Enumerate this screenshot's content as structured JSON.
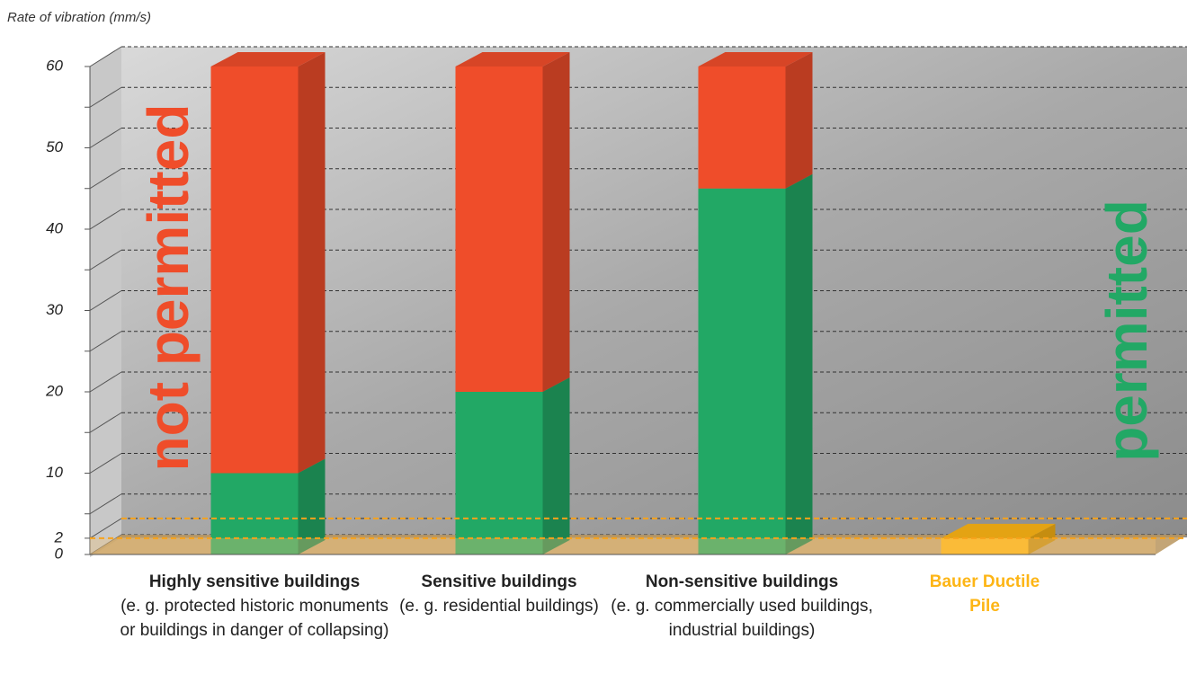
{
  "chart_data": {
    "type": "bar3d_stacked",
    "y_label": "Rate of vibration (mm/s)",
    "categories": [
      "Highly sensitive buildings",
      "Sensitive buildings",
      "Non-sensitive buildings",
      "Bauer Ductile Pile"
    ],
    "category_notes": [
      "(e. g. protected historic monuments or buildings in danger of collapsing)",
      "(e. g. residential buildings)",
      "(e. g. commercially used buildings, industrial buildings)",
      null
    ],
    "series": [
      {
        "name": "permitted",
        "color": "#22a865",
        "point_colors": [
          "#22a865",
          "#22a865",
          "#22a865",
          "#fdb515"
        ],
        "values": [
          10,
          20,
          45,
          2
        ]
      },
      {
        "name": "not permitted",
        "color": "#ef4d2a",
        "values": [
          50,
          40,
          15,
          null
        ]
      }
    ],
    "ylim": [
      0,
      60
    ],
    "yticks": [
      0,
      2,
      10,
      20,
      30,
      40,
      50,
      60
    ],
    "yminorticks": [
      5,
      15,
      25,
      35,
      45,
      55
    ],
    "grid": true
  }
}
